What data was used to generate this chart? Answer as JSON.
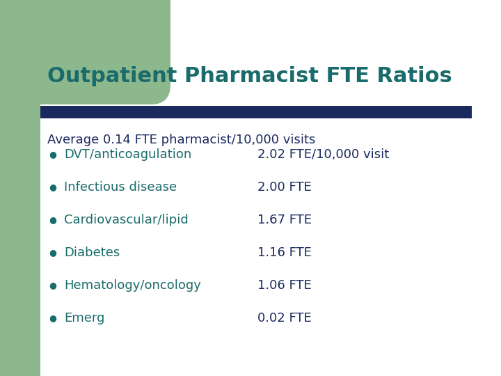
{
  "title": "Outpatient Pharmacist FTE Ratios",
  "title_color": "#1a6b6b",
  "title_fontsize": 22,
  "bar_color": "#1a2a5e",
  "subtitle": "Average 0.14 FTE pharmacist/10,000 visits",
  "text_color": "#1a2a5e",
  "subtitle_fontsize": 13,
  "bullet_label_color": "#1a6b6b",
  "bullet_value_color": "#1a2a5e",
  "bullet_fontsize": 13,
  "bullets": [
    [
      "DVT/anticoagulation",
      "2.02 FTE/10,000 visit"
    ],
    [
      "Infectious disease",
      "2.00 FTE"
    ],
    [
      "Cardiovascular/lipid",
      "1.67 FTE"
    ],
    [
      "Diabetes",
      "1.16 FTE"
    ],
    [
      "Hematology/oncology",
      "1.06 FTE"
    ],
    [
      "Emerg",
      "0.02 FTE"
    ]
  ],
  "bg_color": "#ffffff",
  "green_color": "#8db88d"
}
